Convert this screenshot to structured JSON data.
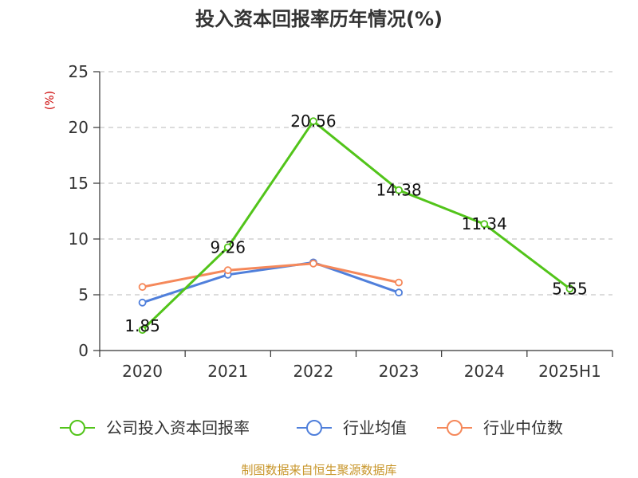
{
  "chart_data": {
    "type": "line",
    "title": "投入资本回报率历年情况(%)",
    "ylabel": "(%)",
    "ylim": [
      0,
      25
    ],
    "yticks": [
      0,
      5,
      10,
      15,
      20,
      25
    ],
    "categories": [
      "2020",
      "2021",
      "2022",
      "2023",
      "2024",
      "2025H1"
    ],
    "grid": true,
    "legend_position": "bottom",
    "series": [
      {
        "name": "公司投入资本回报率",
        "color": "#52c41a",
        "values": [
          1.85,
          9.26,
          20.56,
          14.38,
          11.34,
          5.55
        ],
        "labels": [
          "1.85",
          "9.26",
          "20.56",
          "14.38",
          "11.34",
          "5.55"
        ]
      },
      {
        "name": "行业均值",
        "color": "#4f7fdb",
        "values": [
          4.3,
          6.8,
          7.9,
          5.2,
          null,
          null
        ]
      },
      {
        "name": "行业中位数",
        "color": "#f5885a",
        "values": [
          5.7,
          7.2,
          7.8,
          6.1,
          null,
          null
        ]
      }
    ],
    "source": "制图数据来自恒生聚源数据库"
  }
}
